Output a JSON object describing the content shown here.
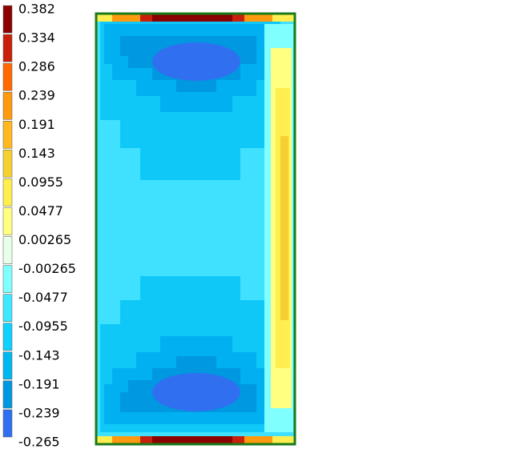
{
  "legend": {
    "labels": [
      "0.382",
      "0.334",
      "0.286",
      "0.239",
      "0.191",
      "0.143",
      "0.0955",
      "0.0477",
      "0.00265",
      "-0.00265",
      "-0.0477",
      "-0.0955",
      "-0.143",
      "-0.191",
      "-0.239",
      "-0.265"
    ],
    "colors": [
      "#8b0000",
      "#c8200a",
      "#ff6a00",
      "#ff9a10",
      "#ffb820",
      "#f5d030",
      "#ffee50",
      "#ffff80",
      "#e8ffe8",
      "#80ffff",
      "#40e8ff",
      "#10d0ff",
      "#00b8f0",
      "#0098e0",
      "#3070f0"
    ]
  }
}
